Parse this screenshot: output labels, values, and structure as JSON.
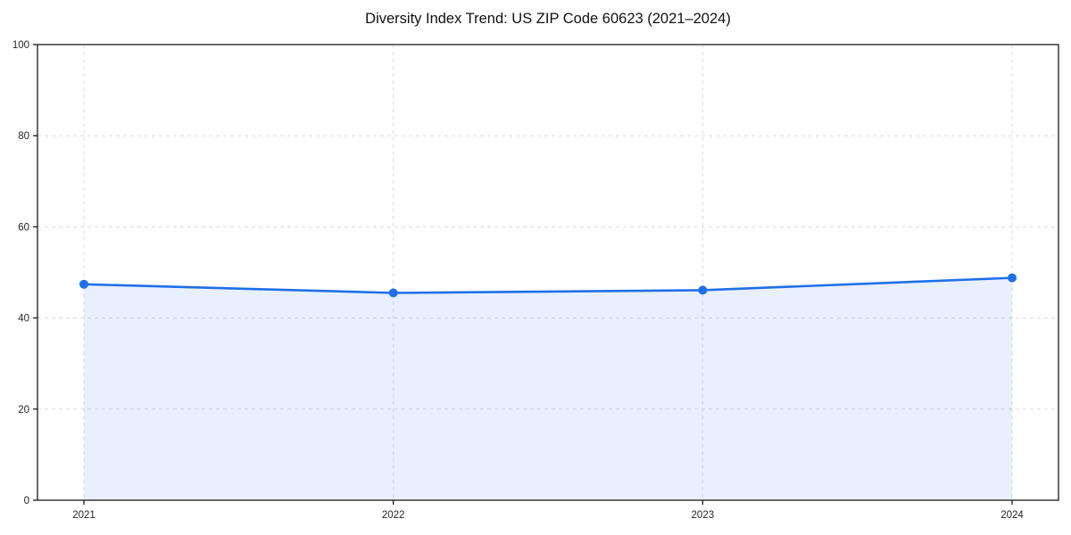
{
  "chart_data": {
    "type": "line",
    "title": "Diversity Index Trend: US ZIP Code 60623 (2021–2024)",
    "x": [
      2021,
      2022,
      2023,
      2024
    ],
    "xtick_labels": [
      "2021",
      "2022",
      "2023",
      "2024"
    ],
    "series": [
      {
        "name": "Diversity Index",
        "values": [
          47.4,
          45.5,
          46.1,
          48.8
        ]
      }
    ],
    "xlabel": "",
    "ylabel": "",
    "ylim": [
      0,
      100
    ],
    "ytick_values": [
      0,
      20,
      40,
      60,
      80,
      100
    ],
    "ytick_labels": [
      "0",
      "20",
      "40",
      "60",
      "80",
      "100"
    ],
    "grid": "dashed",
    "grid_axes": "both",
    "legend": "none",
    "area_fill": true,
    "marker": "circle",
    "colors": {
      "line": "#1f6fe8",
      "marker": "#1f6fe8",
      "area_fill": "rgba(31,111,232,0.10)",
      "grid": "#dcdcdc",
      "spine": "#1a1a1a",
      "tick_label": "#262626",
      "title": "#111111",
      "background": "#ffffff"
    }
  }
}
